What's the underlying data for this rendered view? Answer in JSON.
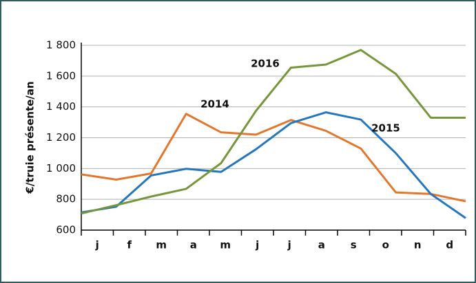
{
  "chart_data": {
    "type": "line",
    "ylabel": "€/truie présente/an",
    "categories": [
      "j",
      "f",
      "m",
      "a",
      "m",
      "j",
      "j",
      "a",
      "s",
      "o",
      "n",
      "d"
    ],
    "series": [
      {
        "name": "2014",
        "color": "#e3772e",
        "values": [
          962,
          928,
          968,
          1355,
          1235,
          1220,
          1315,
          1245,
          1130,
          845,
          835,
          787
        ]
      },
      {
        "name": "2015",
        "color": "#2477bd",
        "values": [
          715,
          752,
          955,
          998,
          978,
          1125,
          1295,
          1365,
          1318,
          1100,
          835,
          678
        ]
      },
      {
        "name": "2016",
        "color": "#76963b",
        "values": [
          708,
          762,
          818,
          868,
          1035,
          1375,
          1655,
          1675,
          1770,
          1615,
          1330,
          1330
        ]
      }
    ],
    "ylim": [
      600,
      1800
    ],
    "yticks": [
      600,
      800,
      {
        "value": 1000,
        "label": "1 000"
      },
      {
        "value": 1200,
        "label": "1 200"
      },
      {
        "value": 1400,
        "label": "1 400"
      },
      {
        "value": 1600,
        "label": "1 600"
      },
      {
        "value": 1800,
        "label": "1 800"
      }
    ],
    "grid": true
  }
}
